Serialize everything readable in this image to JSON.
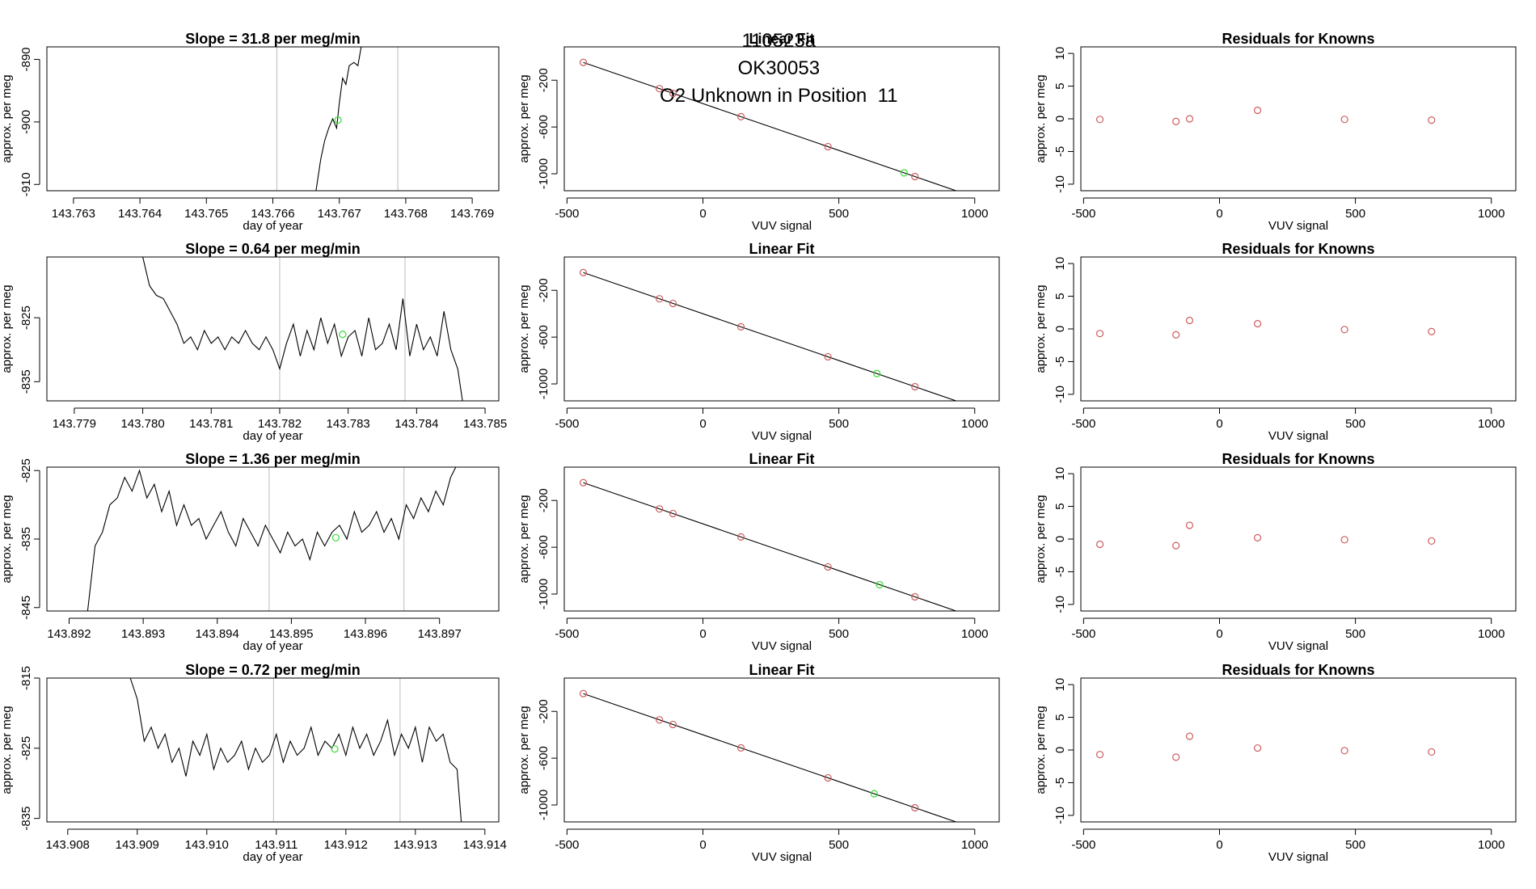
{
  "header": {
    "run_id": "110523a",
    "tank_id": "OK30053",
    "description": "O2 Unknown in Position  11"
  },
  "colors": {
    "axis": "#000000",
    "trace": "#000000",
    "marker_line": "#bdbdbd",
    "known_point": "#cd5c5c",
    "unknown_point": "#33dd33",
    "fit_line": "#000000"
  },
  "chart_data": [
    {
      "panel": "timeseries",
      "row": 1,
      "type": "line",
      "title": "Slope =  31.8  per meg/min",
      "xlabel": "day of year",
      "ylabel": "approx. per meg",
      "xlim": [
        143.7626,
        143.7694
      ],
      "ylim": [
        -911,
        -888
      ],
      "xticks": [
        143.763,
        143.764,
        143.765,
        143.766,
        143.767,
        143.768,
        143.769
      ],
      "xtick_labels": [
        "143.763",
        "143.764",
        "143.765",
        "143.766",
        "143.767",
        "143.768",
        "143.769"
      ],
      "yticks": [
        -910,
        -900,
        -890
      ],
      "ytick_labels": [
        "-910",
        "-900",
        "-890"
      ],
      "vlines": [
        143.76606,
        143.76788
      ],
      "series": [
        {
          "name": "trace",
          "x": [
            143.76665,
            143.76672,
            143.76678,
            143.76684,
            143.7669,
            143.76696,
            143.767,
            143.76705,
            143.7671,
            143.76715,
            143.76722,
            143.76728,
            143.76733,
            143.76738
          ],
          "y": [
            -911,
            -906,
            -903,
            -901,
            -899.5,
            -901,
            -897,
            -893,
            -894,
            -891,
            -890.5,
            -891,
            -888,
            -886
          ]
        }
      ],
      "highlight": {
        "x": 143.76698,
        "y": -899.7
      }
    },
    {
      "panel": "fit",
      "row": 1,
      "type": "scatter",
      "title": "Linear Fit",
      "xlabel": "VUV signal",
      "ylabel": "approx. per meg",
      "xlim": [
        -510,
        1090
      ],
      "ylim": [
        -1145,
        85
      ],
      "xticks": [
        -500,
        0,
        500,
        1000
      ],
      "xtick_labels": [
        "-500",
        "0",
        "500",
        "1000"
      ],
      "yticks": [
        -1000,
        -600,
        -200
      ],
      "ytick_labels": [
        "-1000",
        "-600",
        "-200"
      ],
      "fit_line": {
        "slope": -0.8,
        "intercept": -400,
        "x_range": [
          -440,
          1060
        ]
      },
      "known": {
        "x": [
          -440,
          -160,
          -110,
          140,
          460,
          780
        ],
        "y": [
          -48,
          -272,
          -312,
          -512,
          -768,
          -1024
        ]
      },
      "unknown": {
        "x": 740,
        "y": -992
      }
    },
    {
      "panel": "residuals",
      "row": 1,
      "type": "scatter",
      "title": "Residuals for Knowns",
      "xlabel": "VUV signal",
      "ylabel": "approx. per meg",
      "xlim": [
        -510,
        1090
      ],
      "ylim": [
        -11,
        11
      ],
      "xticks": [
        -500,
        0,
        500,
        1000
      ],
      "xtick_labels": [
        "-500",
        "0",
        "500",
        "1000"
      ],
      "yticks": [
        -10,
        -5,
        0,
        5,
        10
      ],
      "ytick_labels": [
        "-10",
        "-5",
        "0",
        "5",
        "10"
      ],
      "known": {
        "x": [
          -440,
          -160,
          -110,
          140,
          460,
          780
        ],
        "y": [
          -0.1,
          -0.4,
          0.0,
          1.3,
          -0.1,
          -0.2
        ]
      }
    },
    {
      "panel": "timeseries",
      "row": 2,
      "type": "line",
      "title": "Slope =  0.64  per meg/min",
      "xlabel": "day of year",
      "ylabel": "approx. per meg",
      "xlim": [
        143.7786,
        143.7852
      ],
      "ylim": [
        -838,
        -815.5
      ],
      "xticks": [
        143.779,
        143.78,
        143.781,
        143.782,
        143.783,
        143.784,
        143.785
      ],
      "xtick_labels": [
        "143.779",
        "143.780",
        "143.781",
        "143.782",
        "143.783",
        "143.784",
        "143.785"
      ],
      "yticks": [
        -835,
        -825
      ],
      "ytick_labels": [
        "-835",
        "-825"
      ],
      "vlines": [
        143.782,
        143.78383
      ],
      "series": [
        {
          "name": "trace",
          "x": [
            143.78,
            143.7801,
            143.7802,
            143.7803,
            143.7804,
            143.7805,
            143.7806,
            143.7807,
            143.7808,
            143.7809,
            143.781,
            143.7811,
            143.7812,
            143.7813,
            143.7814,
            143.7815,
            143.7816,
            143.7817,
            143.7818,
            143.7819,
            143.782,
            143.7821,
            143.7822,
            143.7823,
            143.7824,
            143.7825,
            143.7826,
            143.7827,
            143.7828,
            143.7829,
            143.783,
            143.7831,
            143.7832,
            143.7833,
            143.7834,
            143.7835,
            143.7836,
            143.7837,
            143.7838,
            143.7839,
            143.784,
            143.7841,
            143.7842,
            143.7843,
            143.7844,
            143.7845,
            143.7846,
            143.78467
          ],
          "y": [
            -815.5,
            -820,
            -821.5,
            -822,
            -824,
            -826,
            -829,
            -828,
            -830,
            -827,
            -829,
            -828,
            -830,
            -828,
            -829,
            -827,
            -829,
            -830,
            -828,
            -830,
            -833,
            -829,
            -826,
            -831,
            -827,
            -830,
            -825,
            -829,
            -826,
            -831,
            -828,
            -827,
            -831,
            -825,
            -830,
            -829,
            -826,
            -830,
            -822,
            -831,
            -826,
            -830,
            -828,
            -831,
            -824,
            -830,
            -833,
            -838
          ]
        }
      ],
      "highlight": {
        "x": 143.78292,
        "y": -827.6
      }
    },
    {
      "panel": "fit",
      "row": 2,
      "type": "scatter",
      "title": "Linear Fit",
      "xlabel": "VUV signal",
      "ylabel": "approx. per meg",
      "xlim": [
        -510,
        1090
      ],
      "ylim": [
        -1145,
        85
      ],
      "xticks": [
        -500,
        0,
        500,
        1000
      ],
      "xtick_labels": [
        "-500",
        "0",
        "500",
        "1000"
      ],
      "yticks": [
        -1000,
        -600,
        -200
      ],
      "ytick_labels": [
        "-1000",
        "-600",
        "-200"
      ],
      "fit_line": {
        "slope": -0.8,
        "intercept": -400,
        "x_range": [
          -440,
          1060
        ]
      },
      "known": {
        "x": [
          -440,
          -160,
          -110,
          140,
          460,
          780
        ],
        "y": [
          -48,
          -272,
          -312,
          -512,
          -768,
          -1024
        ]
      },
      "unknown": {
        "x": 640,
        "y": -912
      }
    },
    {
      "panel": "residuals",
      "row": 2,
      "type": "scatter",
      "title": "Residuals for Knowns",
      "xlabel": "VUV signal",
      "ylabel": "approx. per meg",
      "xlim": [
        -510,
        1090
      ],
      "ylim": [
        -11,
        11
      ],
      "xticks": [
        -500,
        0,
        500,
        1000
      ],
      "xtick_labels": [
        "-500",
        "0",
        "500",
        "1000"
      ],
      "yticks": [
        -10,
        -5,
        0,
        5,
        10
      ],
      "ytick_labels": [
        "-10",
        "-5",
        "0",
        "5",
        "10"
      ],
      "known": {
        "x": [
          -440,
          -160,
          -110,
          140,
          460,
          780
        ],
        "y": [
          -0.7,
          -0.9,
          1.3,
          0.8,
          -0.1,
          -0.4
        ]
      }
    },
    {
      "panel": "timeseries",
      "row": 3,
      "type": "line",
      "title": "Slope =  1.36  per meg/min",
      "xlabel": "day of year",
      "ylabel": "approx. per meg",
      "xlim": [
        143.8917,
        143.8978
      ],
      "ylim": [
        -845.5,
        -824.5
      ],
      "xticks": [
        143.892,
        143.893,
        143.894,
        143.895,
        143.896,
        143.897
      ],
      "xtick_labels": [
        "143.892",
        "143.893",
        "143.894",
        "143.895",
        "143.896",
        "143.897"
      ],
      "yticks": [
        -845,
        -835,
        -825
      ],
      "ytick_labels": [
        "-845",
        "-835",
        "-825"
      ],
      "vlines": [
        143.8947,
        143.89652
      ],
      "series": [
        {
          "name": "trace",
          "x": [
            143.89225,
            143.89235,
            143.89245,
            143.89255,
            143.89265,
            143.89275,
            143.89285,
            143.89295,
            143.89305,
            143.89315,
            143.89325,
            143.89335,
            143.89345,
            143.89355,
            143.89365,
            143.89375,
            143.89385,
            143.89395,
            143.89405,
            143.89415,
            143.89425,
            143.89435,
            143.89445,
            143.89455,
            143.89465,
            143.89475,
            143.89485,
            143.89495,
            143.89505,
            143.89515,
            143.89525,
            143.89535,
            143.89545,
            143.89555,
            143.89565,
            143.89575,
            143.89585,
            143.89595,
            143.89605,
            143.89615,
            143.89625,
            143.89635,
            143.89645,
            143.89655,
            143.89665,
            143.89675,
            143.89685,
            143.89695,
            143.89705,
            143.89715,
            143.89722
          ],
          "y": [
            -845.5,
            -836,
            -834,
            -830,
            -829,
            -826,
            -828,
            -825,
            -829,
            -827,
            -831,
            -828,
            -833,
            -830,
            -833,
            -832,
            -835,
            -833,
            -831,
            -834,
            -836,
            -832,
            -834,
            -836,
            -833,
            -835,
            -837,
            -834,
            -836,
            -835,
            -838,
            -834,
            -836,
            -834,
            -833,
            -835,
            -831,
            -834,
            -833,
            -831,
            -834,
            -832,
            -835,
            -830,
            -832,
            -829,
            -831,
            -828,
            -830,
            -826,
            -824.5
          ]
        }
      ],
      "highlight": {
        "x": 143.8956,
        "y": -834.8
      }
    },
    {
      "panel": "fit",
      "row": 3,
      "type": "scatter",
      "title": "Linear Fit",
      "xlabel": "VUV signal",
      "ylabel": "approx. per meg",
      "xlim": [
        -510,
        1090
      ],
      "ylim": [
        -1145,
        85
      ],
      "xticks": [
        -500,
        0,
        500,
        1000
      ],
      "xtick_labels": [
        "-500",
        "0",
        "500",
        "1000"
      ],
      "yticks": [
        -1000,
        -600,
        -200
      ],
      "ytick_labels": [
        "-1000",
        "-600",
        "-200"
      ],
      "fit_line": {
        "slope": -0.8,
        "intercept": -400,
        "x_range": [
          -440,
          1060
        ]
      },
      "known": {
        "x": [
          -440,
          -160,
          -110,
          140,
          460,
          780
        ],
        "y": [
          -48,
          -272,
          -312,
          -512,
          -768,
          -1024
        ]
      },
      "unknown": {
        "x": 650,
        "y": -920
      }
    },
    {
      "panel": "residuals",
      "row": 3,
      "type": "scatter",
      "title": "Residuals for Knowns",
      "xlabel": "VUV signal",
      "ylabel": "approx. per meg",
      "xlim": [
        -510,
        1090
      ],
      "ylim": [
        -11,
        11
      ],
      "xticks": [
        -500,
        0,
        500,
        1000
      ],
      "xtick_labels": [
        "-500",
        "0",
        "500",
        "1000"
      ],
      "yticks": [
        -10,
        -5,
        0,
        5,
        10
      ],
      "ytick_labels": [
        "-10",
        "-5",
        "0",
        "5",
        "10"
      ],
      "known": {
        "x": [
          -440,
          -160,
          -110,
          140,
          460,
          780
        ],
        "y": [
          -0.8,
          -1.0,
          2.1,
          0.2,
          -0.1,
          -0.3
        ]
      }
    },
    {
      "panel": "timeseries",
      "row": 4,
      "type": "line",
      "title": "Slope =  0.72  per meg/min",
      "xlabel": "day of year",
      "ylabel": "approx. per meg",
      "xlim": [
        143.9077,
        143.9142
      ],
      "ylim": [
        -835.5,
        -815
      ],
      "xticks": [
        143.908,
        143.909,
        143.91,
        143.911,
        143.912,
        143.913,
        143.914
      ],
      "xtick_labels": [
        "143.908",
        "143.909",
        "143.910",
        "143.911",
        "143.912",
        "143.913",
        "143.914"
      ],
      "yticks": [
        -835,
        -825,
        -815
      ],
      "ytick_labels": [
        "-835",
        "-825",
        "-815"
      ],
      "vlines": [
        143.91096,
        143.91278
      ],
      "series": [
        {
          "name": "trace",
          "x": [
            143.9089,
            143.909,
            143.9091,
            143.9092,
            143.9093,
            143.9094,
            143.9095,
            143.9096,
            143.9097,
            143.9098,
            143.9099,
            143.91,
            143.9101,
            143.9102,
            143.9103,
            143.9104,
            143.9105,
            143.9106,
            143.9107,
            143.9108,
            143.9109,
            143.911,
            143.9111,
            143.9112,
            143.9113,
            143.9114,
            143.9115,
            143.9116,
            143.9117,
            143.9118,
            143.9119,
            143.912,
            143.9121,
            143.9122,
            143.9123,
            143.9124,
            143.9125,
            143.9126,
            143.9127,
            143.9128,
            143.9129,
            143.913,
            143.9131,
            143.9132,
            143.9133,
            143.9134,
            143.9135,
            143.9136,
            143.91366
          ],
          "y": [
            -815,
            -818,
            -824,
            -822,
            -825,
            -823,
            -827,
            -825,
            -829,
            -824,
            -826,
            -823,
            -828,
            -825,
            -827,
            -826,
            -824,
            -828,
            -825,
            -827,
            -826,
            -823,
            -827,
            -824,
            -826,
            -825,
            -822,
            -826,
            -824,
            -825,
            -823,
            -826,
            -822,
            -825,
            -823,
            -826,
            -824,
            -821,
            -826,
            -823,
            -825,
            -822,
            -827,
            -822,
            -824,
            -823,
            -827,
            -828,
            -835.5
          ]
        }
      ],
      "highlight": {
        "x": 143.91184,
        "y": -825.1
      }
    },
    {
      "panel": "fit",
      "row": 4,
      "type": "scatter",
      "title": "Linear Fit",
      "xlabel": "VUV signal",
      "ylabel": "approx. per meg",
      "xlim": [
        -510,
        1090
      ],
      "ylim": [
        -1145,
        85
      ],
      "xticks": [
        -500,
        0,
        500,
        1000
      ],
      "xtick_labels": [
        "-500",
        "0",
        "500",
        "1000"
      ],
      "yticks": [
        -1000,
        -600,
        -200
      ],
      "ytick_labels": [
        "-1000",
        "-600",
        "-200"
      ],
      "fit_line": {
        "slope": -0.8,
        "intercept": -400,
        "x_range": [
          -440,
          1060
        ]
      },
      "known": {
        "x": [
          -440,
          -160,
          -110,
          140,
          460,
          780
        ],
        "y": [
          -48,
          -272,
          -312,
          -512,
          -768,
          -1024
        ]
      },
      "unknown": {
        "x": 630,
        "y": -904
      }
    },
    {
      "panel": "residuals",
      "row": 4,
      "type": "scatter",
      "title": "Residuals for Knowns",
      "xlabel": "VUV signal",
      "ylabel": "approx. per meg",
      "xlim": [
        -510,
        1090
      ],
      "ylim": [
        -11,
        11
      ],
      "xticks": [
        -500,
        0,
        500,
        1000
      ],
      "xtick_labels": [
        "-500",
        "0",
        "500",
        "1000"
      ],
      "yticks": [
        -10,
        -5,
        0,
        5,
        10
      ],
      "ytick_labels": [
        "-10",
        "-5",
        "0",
        "5",
        "10"
      ],
      "known": {
        "x": [
          -440,
          -160,
          -110,
          140,
          460,
          780
        ],
        "y": [
          -0.7,
          -1.1,
          2.1,
          0.3,
          -0.1,
          -0.3
        ]
      }
    }
  ]
}
